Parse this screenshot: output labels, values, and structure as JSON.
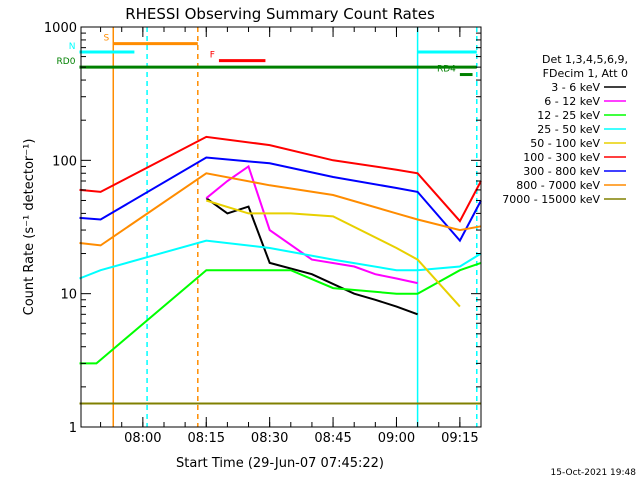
{
  "chart_data": {
    "type": "line",
    "title": "RHESSI Observing Summary Count Rates",
    "xlabel": "Start Time (29-Jun-07 07:45:22)",
    "ylabel": "Count Rate (s⁻¹ detector⁻¹)",
    "yscale": "log",
    "ylim": [
      1,
      1000
    ],
    "xlim": [
      "07:45:22",
      "09:20:00"
    ],
    "x_ticks": [
      "08:00",
      "08:15",
      "08:30",
      "08:45",
      "09:00",
      "09:15"
    ],
    "y_ticks": [
      "1",
      "10",
      "100",
      "1000"
    ],
    "legend_title": [
      "Det 1,3,4,5,6,9,",
      "FDecim 1, Att 0"
    ],
    "legend_position": "right",
    "series": [
      {
        "name": "3 - 6 keV",
        "color": "#000000",
        "points": [
          [
            "08:15",
            52
          ],
          [
            "08:20",
            40
          ],
          [
            "08:25",
            45
          ],
          [
            "08:30",
            17
          ],
          [
            "08:40",
            14
          ],
          [
            "08:50",
            10
          ],
          [
            "08:55",
            9
          ],
          [
            "09:00",
            8
          ],
          [
            "09:05",
            7
          ]
        ]
      },
      {
        "name": "6 - 12 keV",
        "color": "#ff00ff",
        "points": [
          [
            "08:15",
            52
          ],
          [
            "08:20",
            70
          ],
          [
            "08:25",
            90
          ],
          [
            "08:30",
            30
          ],
          [
            "08:40",
            18
          ],
          [
            "08:50",
            16
          ],
          [
            "08:55",
            14
          ],
          [
            "09:00",
            13
          ],
          [
            "09:05",
            12
          ]
        ]
      },
      {
        "name": "12 - 25 keV",
        "color": "#00ff00",
        "points": [
          [
            "07:45",
            3
          ],
          [
            "07:49",
            3
          ],
          [
            "08:15",
            15
          ],
          [
            "08:25",
            15
          ],
          [
            "08:35",
            15
          ],
          [
            "08:45",
            11
          ],
          [
            "09:00",
            10
          ],
          [
            "09:05",
            10
          ],
          [
            "09:15",
            15
          ],
          [
            "09:20",
            17
          ]
        ]
      },
      {
        "name": "25 - 50 keV",
        "color": "#00ffff",
        "points": [
          [
            "07:45",
            13
          ],
          [
            "07:50",
            15
          ],
          [
            "08:15",
            25
          ],
          [
            "08:30",
            22
          ],
          [
            "08:45",
            18
          ],
          [
            "09:00",
            15
          ],
          [
            "09:05",
            15
          ],
          [
            "09:15",
            16
          ],
          [
            "09:20",
            20
          ]
        ]
      },
      {
        "name": "50 - 100 keV",
        "color": "#e8d000",
        "points": [
          [
            "08:15",
            50
          ],
          [
            "08:25",
            40
          ],
          [
            "08:35",
            40
          ],
          [
            "08:45",
            38
          ],
          [
            "09:00",
            22
          ],
          [
            "09:05",
            18
          ],
          [
            "09:15",
            8
          ]
        ]
      },
      {
        "name": "100 - 300 keV",
        "color": "#ff0000",
        "points": [
          [
            "07:45",
            60
          ],
          [
            "07:50",
            58
          ],
          [
            "08:15",
            150
          ],
          [
            "08:30",
            130
          ],
          [
            "08:45",
            100
          ],
          [
            "09:00",
            85
          ],
          [
            "09:05",
            80
          ],
          [
            "09:15",
            35
          ],
          [
            "09:20",
            70
          ]
        ]
      },
      {
        "name": "300 - 800 keV",
        "color": "#0000ff",
        "points": [
          [
            "07:45",
            37
          ],
          [
            "07:50",
            36
          ],
          [
            "08:15",
            105
          ],
          [
            "08:30",
            95
          ],
          [
            "08:45",
            75
          ],
          [
            "09:00",
            62
          ],
          [
            "09:05",
            58
          ],
          [
            "09:15",
            25
          ],
          [
            "09:20",
            50
          ]
        ]
      },
      {
        "name": "800 - 7000 keV",
        "color": "#ff8c00",
        "points": [
          [
            "07:45",
            24
          ],
          [
            "07:50",
            23
          ],
          [
            "08:15",
            80
          ],
          [
            "08:30",
            65
          ],
          [
            "08:45",
            55
          ],
          [
            "09:00",
            40
          ],
          [
            "09:05",
            36
          ],
          [
            "09:15",
            30
          ],
          [
            "09:20",
            32
          ]
        ]
      },
      {
        "name": "7000 - 15000 keV",
        "color": "#808000",
        "points": [
          [
            "07:45",
            1.5
          ],
          [
            "07:50",
            1.5
          ],
          [
            "08:30",
            1.5
          ],
          [
            "08:45",
            1.5
          ],
          [
            "09:05",
            1.5
          ],
          [
            "09:15",
            1.5
          ],
          [
            "09:20",
            1.5
          ]
        ]
      }
    ],
    "annotations": [
      {
        "label": "S",
        "color": "#ff8c00",
        "x_start": "07:53",
        "x_end": "08:13",
        "y": 750
      },
      {
        "label": "N",
        "color": "#00ffff",
        "x_start": "07:45",
        "x_end": "07:58",
        "y": 650
      },
      {
        "label": "F",
        "color": "#ff0000",
        "x_start": "08:18",
        "x_end": "08:29",
        "y": 560
      },
      {
        "label": "RD0",
        "color": "#008000",
        "x_start": "07:45",
        "x_end": "09:19",
        "y": 500
      },
      {
        "label": "RD4",
        "color": "#008000",
        "x_start": "09:15",
        "x_end": "09:18",
        "y": 440
      },
      {
        "label": "",
        "color": "#00ffff",
        "x_start": "09:05",
        "x_end": "09:19",
        "y": 650
      }
    ],
    "vertical_markers": [
      {
        "x": "07:53",
        "color": "#ff8c00",
        "style": "solid"
      },
      {
        "x": "08:01",
        "color": "#00ffff",
        "style": "dashed"
      },
      {
        "x": "08:13",
        "color": "#ff8c00",
        "style": "dashed"
      },
      {
        "x": "09:05",
        "color": "#00ffff",
        "style": "solid"
      },
      {
        "x": "09:19",
        "color": "#00ffff",
        "style": "dashed"
      }
    ],
    "footer_date": "15-Oct-2021 19:48"
  }
}
